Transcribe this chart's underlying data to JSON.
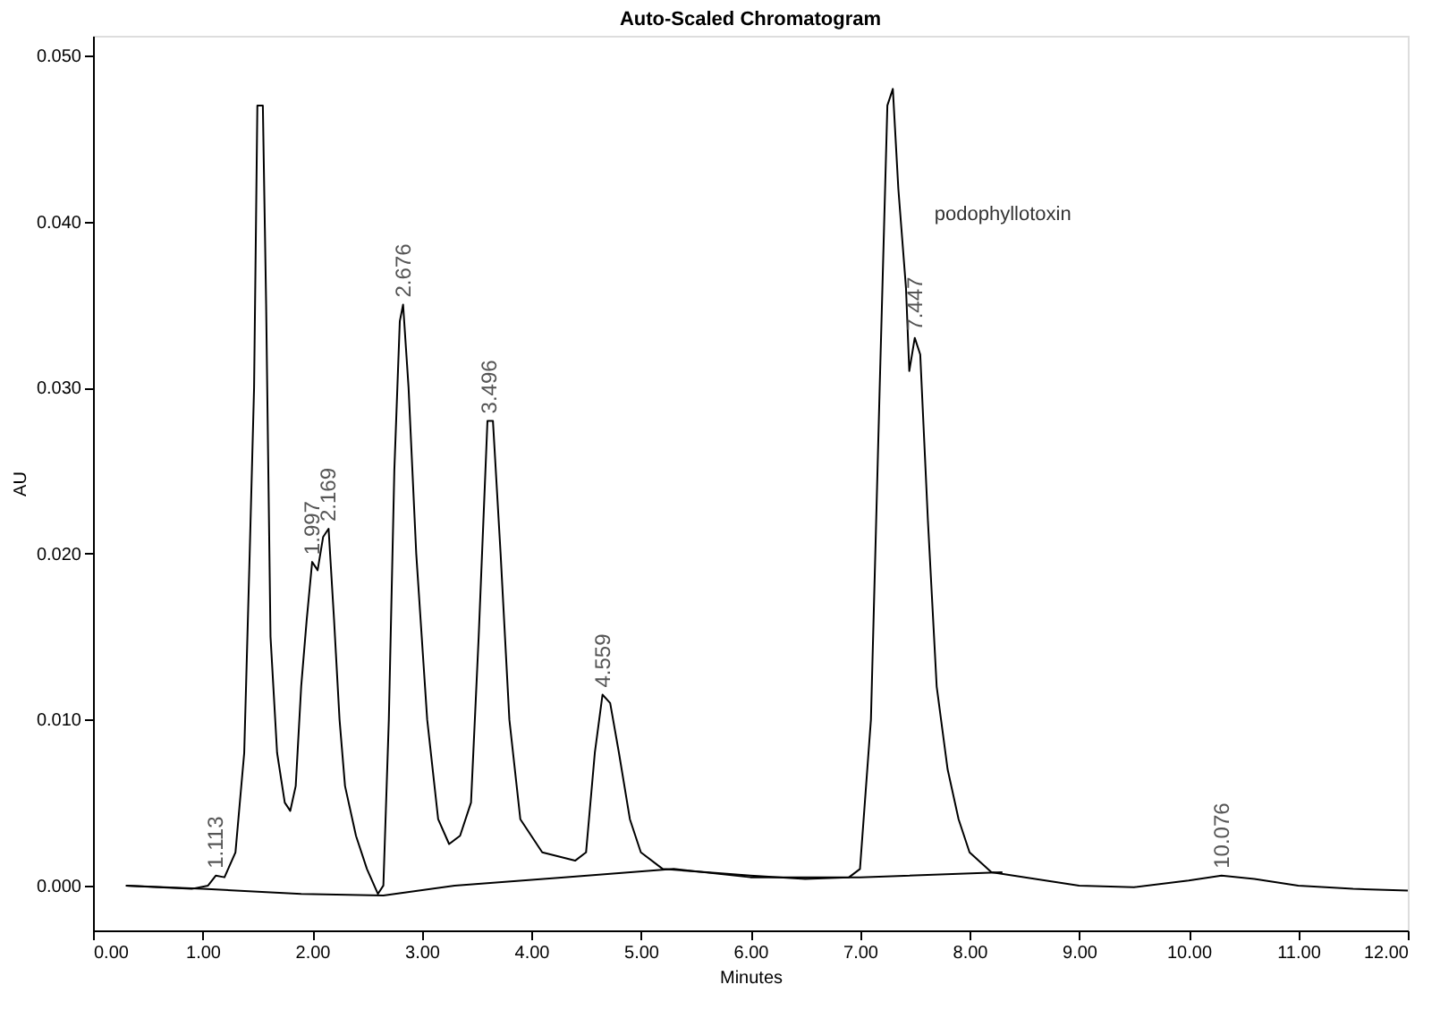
{
  "chart_data": {
    "type": "line",
    "title": "Auto-Scaled Chromatogram",
    "xlabel": "Minutes",
    "ylabel": "AU",
    "xlim": [
      0,
      12
    ],
    "ylim": [
      -0.0027,
      0.0512
    ],
    "xticks": [
      {
        "value": 0,
        "label": "0.00"
      },
      {
        "value": 1,
        "label": "1.00"
      },
      {
        "value": 2,
        "label": "2.00"
      },
      {
        "value": 3,
        "label": "3.00"
      },
      {
        "value": 4,
        "label": "4.00"
      },
      {
        "value": 5,
        "label": "5.00"
      },
      {
        "value": 6,
        "label": "6.00"
      },
      {
        "value": 7,
        "label": "7.00"
      },
      {
        "value": 8,
        "label": "8.00"
      },
      {
        "value": 9,
        "label": "9.00"
      },
      {
        "value": 10,
        "label": "10.00"
      },
      {
        "value": 11,
        "label": "11.00"
      },
      {
        "value": 12,
        "label": "12.00"
      }
    ],
    "yticks": [
      {
        "value": 0,
        "label": "0.000"
      },
      {
        "value": 0.01,
        "label": "0.010"
      },
      {
        "value": 0.02,
        "label": "0.020"
      },
      {
        "value": 0.03,
        "label": "0.030"
      },
      {
        "value": 0.04,
        "label": "0.040"
      },
      {
        "value": 0.05,
        "label": "0.050"
      }
    ],
    "grid": false,
    "line_style": "solid",
    "marker": "none",
    "series": [
      {
        "color": "#000000",
        "x": [
          0.3,
          0.9,
          1.05,
          1.12,
          1.2,
          1.3,
          1.38,
          1.43,
          1.47,
          1.5,
          1.55,
          1.58,
          1.62,
          1.68,
          1.75,
          1.8,
          1.85,
          1.9,
          1.95,
          2.0,
          2.05,
          2.1,
          2.15,
          2.2,
          2.25,
          2.3,
          2.4,
          2.5,
          2.6,
          2.65,
          2.7,
          2.75,
          2.8,
          2.83,
          2.88,
          2.95,
          3.05,
          3.15,
          3.25,
          3.35,
          3.45,
          3.52,
          3.6,
          3.65,
          3.72,
          3.8,
          3.9,
          4.1,
          4.4,
          4.5,
          4.58,
          4.65,
          4.72,
          4.8,
          4.9,
          5.0,
          5.2,
          5.6,
          6.0,
          6.5,
          6.9,
          7.0,
          7.1,
          7.18,
          7.25,
          7.3,
          7.35,
          7.42,
          7.45,
          7.5,
          7.55,
          7.62,
          7.7,
          7.8,
          7.9,
          8.0,
          8.2,
          8.6,
          9.0,
          9.5,
          10.0,
          10.3,
          10.6,
          11.0,
          11.5,
          12.0
        ],
        "values": [
          0.0,
          -0.0002,
          0.0,
          0.0006,
          0.0005,
          0.002,
          0.008,
          0.02,
          0.03,
          0.047,
          0.047,
          0.035,
          0.015,
          0.008,
          0.005,
          0.0045,
          0.006,
          0.012,
          0.016,
          0.0195,
          0.019,
          0.021,
          0.0215,
          0.016,
          0.01,
          0.006,
          0.003,
          0.001,
          -0.0005,
          0.0,
          0.01,
          0.025,
          0.034,
          0.035,
          0.03,
          0.02,
          0.01,
          0.004,
          0.0025,
          0.003,
          0.005,
          0.015,
          0.028,
          0.028,
          0.02,
          0.01,
          0.004,
          0.002,
          0.0015,
          0.002,
          0.008,
          0.0115,
          0.011,
          0.008,
          0.004,
          0.002,
          0.001,
          0.0008,
          0.0006,
          0.0004,
          0.0005,
          0.001,
          0.01,
          0.03,
          0.047,
          0.048,
          0.042,
          0.036,
          0.031,
          0.033,
          0.032,
          0.022,
          0.012,
          0.007,
          0.004,
          0.002,
          0.0008,
          0.0004,
          0.0,
          -0.0001,
          0.0003,
          0.0006,
          0.0004,
          0.0,
          -0.0002,
          -0.0003
        ]
      },
      {
        "color": "#000000",
        "x": [
          0.3,
          1.0,
          1.9,
          2.65,
          3.3,
          4.3,
          5.3,
          6.0,
          7.0,
          8.3
        ],
        "values": [
          0.0,
          -0.0002,
          -0.0005,
          -0.0006,
          0.0,
          0.0005,
          0.001,
          0.0005,
          0.0005,
          0.0008
        ]
      }
    ],
    "annotations": [
      {
        "text": "1.113",
        "x": 1.12,
        "y": 0.0006
      },
      {
        "text": "1.997",
        "x": 2.0,
        "y": 0.0195
      },
      {
        "text": "2.169",
        "x": 2.15,
        "y": 0.0215
      },
      {
        "text": "2.676",
        "x": 2.83,
        "y": 0.035
      },
      {
        "text": "3.496",
        "x": 3.62,
        "y": 0.028
      },
      {
        "text": "4.559",
        "x": 4.65,
        "y": 0.0115
      },
      {
        "text": "7.447",
        "x": 7.5,
        "y": 0.033
      },
      {
        "text": "10.076",
        "x": 10.3,
        "y": 0.0006
      },
      "podophyllotoxin"
    ]
  }
}
